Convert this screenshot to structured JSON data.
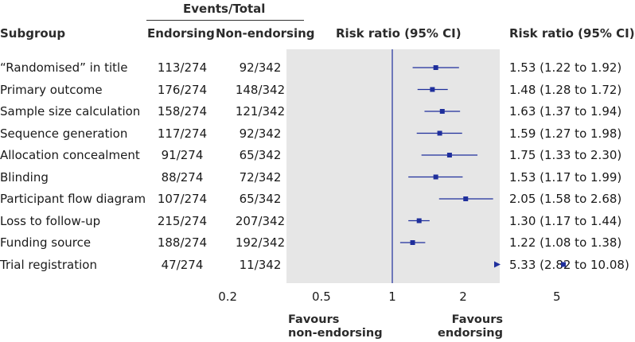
{
  "headers": {
    "events_total": "Events/Total",
    "subgroup": "Subgroup",
    "endorsing": "Endorsing",
    "non_endorsing": "Non-endorsing",
    "risk_ratio_plot": "Risk ratio (95% CI)",
    "risk_ratio_text": "Risk ratio (95% CI)"
  },
  "rows": [
    {
      "subgroup": "“Randomised” in title",
      "endorsing": "113/274",
      "non_endorsing": "92/342",
      "ci_text": "1.53 (1.22 to 1.92)"
    },
    {
      "subgroup": "Primary outcome",
      "endorsing": "176/274",
      "non_endorsing": "148/342",
      "ci_text": "1.48 (1.28 to 1.72)"
    },
    {
      "subgroup": "Sample size calculation",
      "endorsing": "158/274",
      "non_endorsing": "121/342",
      "ci_text": "1.63 (1.37 to 1.94)"
    },
    {
      "subgroup": "Sequence generation",
      "endorsing": "117/274",
      "non_endorsing": "92/342",
      "ci_text": "1.59 (1.27 to 1.98)"
    },
    {
      "subgroup": "Allocation concealment",
      "endorsing": "91/274",
      "non_endorsing": "65/342",
      "ci_text": "1.75 (1.33 to 2.30)"
    },
    {
      "subgroup": "Blinding",
      "endorsing": "88/274",
      "non_endorsing": "72/342",
      "ci_text": "1.53 (1.17 to 1.99)"
    },
    {
      "subgroup": "Participant flow diagram",
      "endorsing": "107/274",
      "non_endorsing": "65/342",
      "ci_text": "2.05 (1.58 to 2.68)"
    },
    {
      "subgroup": "Loss to follow-up",
      "endorsing": "215/274",
      "non_endorsing": "207/342",
      "ci_text": "1.30 (1.17 to 1.44)"
    },
    {
      "subgroup": "Funding source",
      "endorsing": "188/274",
      "non_endorsing": "192/342",
      "ci_text": "1.22 (1.08 to 1.38)"
    },
    {
      "subgroup": "Trial registration",
      "endorsing": "47/274",
      "non_endorsing": "11/342",
      "ci_text": "5.33 (2.82 to 10.08)"
    }
  ],
  "favours": {
    "left_line1": "Favours",
    "left_line2": "non-endorsing",
    "right_line1": "Favours",
    "right_line2": "endorsing"
  },
  "colors": {
    "marker": "#1f2f9c",
    "reference_line": "#1f2f9c",
    "plot_background": "#e6e6e6"
  },
  "chart_data": {
    "type": "forest",
    "x_scale": "log",
    "reference_value": 1,
    "xlim": [
      0.2,
      6
    ],
    "ticks": [
      0.2,
      0.5,
      1,
      2,
      5
    ],
    "tick_labels": [
      "0.2",
      "0.5",
      "1",
      "2",
      "5"
    ],
    "xlabel_left": "Favours non-endorsing",
    "xlabel_right": "Favours endorsing",
    "points": [
      {
        "label": "“Randomised” in title",
        "estimate": 1.53,
        "lower": 1.22,
        "upper": 1.92
      },
      {
        "label": "Primary outcome",
        "estimate": 1.48,
        "lower": 1.28,
        "upper": 1.72
      },
      {
        "label": "Sample size calculation",
        "estimate": 1.63,
        "lower": 1.37,
        "upper": 1.94
      },
      {
        "label": "Sequence generation",
        "estimate": 1.59,
        "lower": 1.27,
        "upper": 1.98
      },
      {
        "label": "Allocation concealment",
        "estimate": 1.75,
        "lower": 1.33,
        "upper": 2.3
      },
      {
        "label": "Blinding",
        "estimate": 1.53,
        "lower": 1.17,
        "upper": 1.99
      },
      {
        "label": "Participant flow diagram",
        "estimate": 2.05,
        "lower": 1.58,
        "upper": 2.68
      },
      {
        "label": "Loss to follow-up",
        "estimate": 1.3,
        "lower": 1.17,
        "upper": 1.44
      },
      {
        "label": "Funding source",
        "estimate": 1.22,
        "lower": 1.08,
        "upper": 1.38
      },
      {
        "label": "Trial registration",
        "estimate": 5.33,
        "lower": 2.82,
        "upper": 10.08,
        "upper_truncated": true
      }
    ]
  }
}
